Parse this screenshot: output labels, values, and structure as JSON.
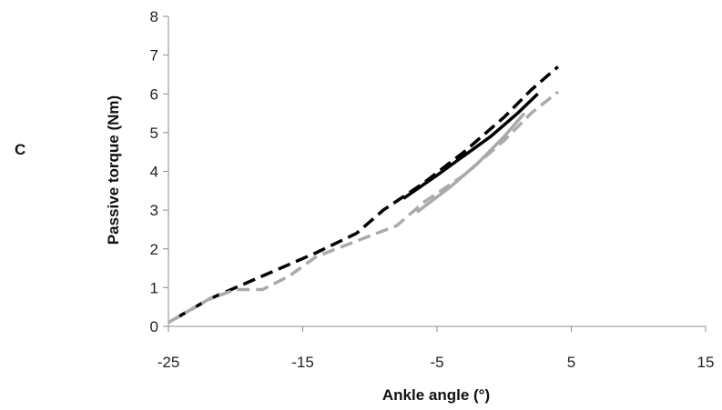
{
  "panel_label": "C",
  "chart_data": {
    "type": "line",
    "title": "",
    "xlabel": "Ankle angle (°)",
    "ylabel": "Passive torque (Nm)",
    "xlim": [
      -25,
      15
    ],
    "ylim": [
      0,
      8
    ],
    "xticks": [
      -25,
      -15,
      -5,
      5,
      15
    ],
    "yticks": [
      0,
      1,
      2,
      3,
      4,
      5,
      6,
      7,
      8
    ],
    "grid": false,
    "legend": "none",
    "series": [
      {
        "color": "#000000",
        "dash": "dashed",
        "x": [
          -24.5,
          -22,
          -18,
          -14,
          -11,
          -9,
          -6,
          -3,
          0,
          2,
          4
        ],
        "y": [
          0.2,
          0.7,
          1.3,
          1.9,
          2.4,
          3.0,
          3.7,
          4.5,
          5.4,
          6.1,
          6.7
        ]
      },
      {
        "color": "#aaaaaa",
        "dash": "dashed",
        "x": [
          -25,
          -22,
          -20,
          -18,
          -16,
          -14,
          -11,
          -8,
          -6,
          -3,
          0,
          2,
          4
        ],
        "y": [
          0.1,
          0.7,
          0.95,
          0.95,
          1.3,
          1.8,
          2.2,
          2.6,
          3.2,
          3.9,
          4.8,
          5.5,
          6.05
        ]
      },
      {
        "color": "#000000",
        "dash": "solid",
        "x": [
          -7.5,
          -5,
          -3,
          -1,
          1,
          2.5
        ],
        "y": [
          3.3,
          3.9,
          4.4,
          4.9,
          5.5,
          6.0
        ]
      },
      {
        "color": "#aaaaaa",
        "dash": "solid",
        "x": [
          -6.5,
          -4,
          -2,
          0,
          1.5
        ],
        "y": [
          2.95,
          3.6,
          4.2,
          4.9,
          5.5
        ]
      }
    ]
  }
}
